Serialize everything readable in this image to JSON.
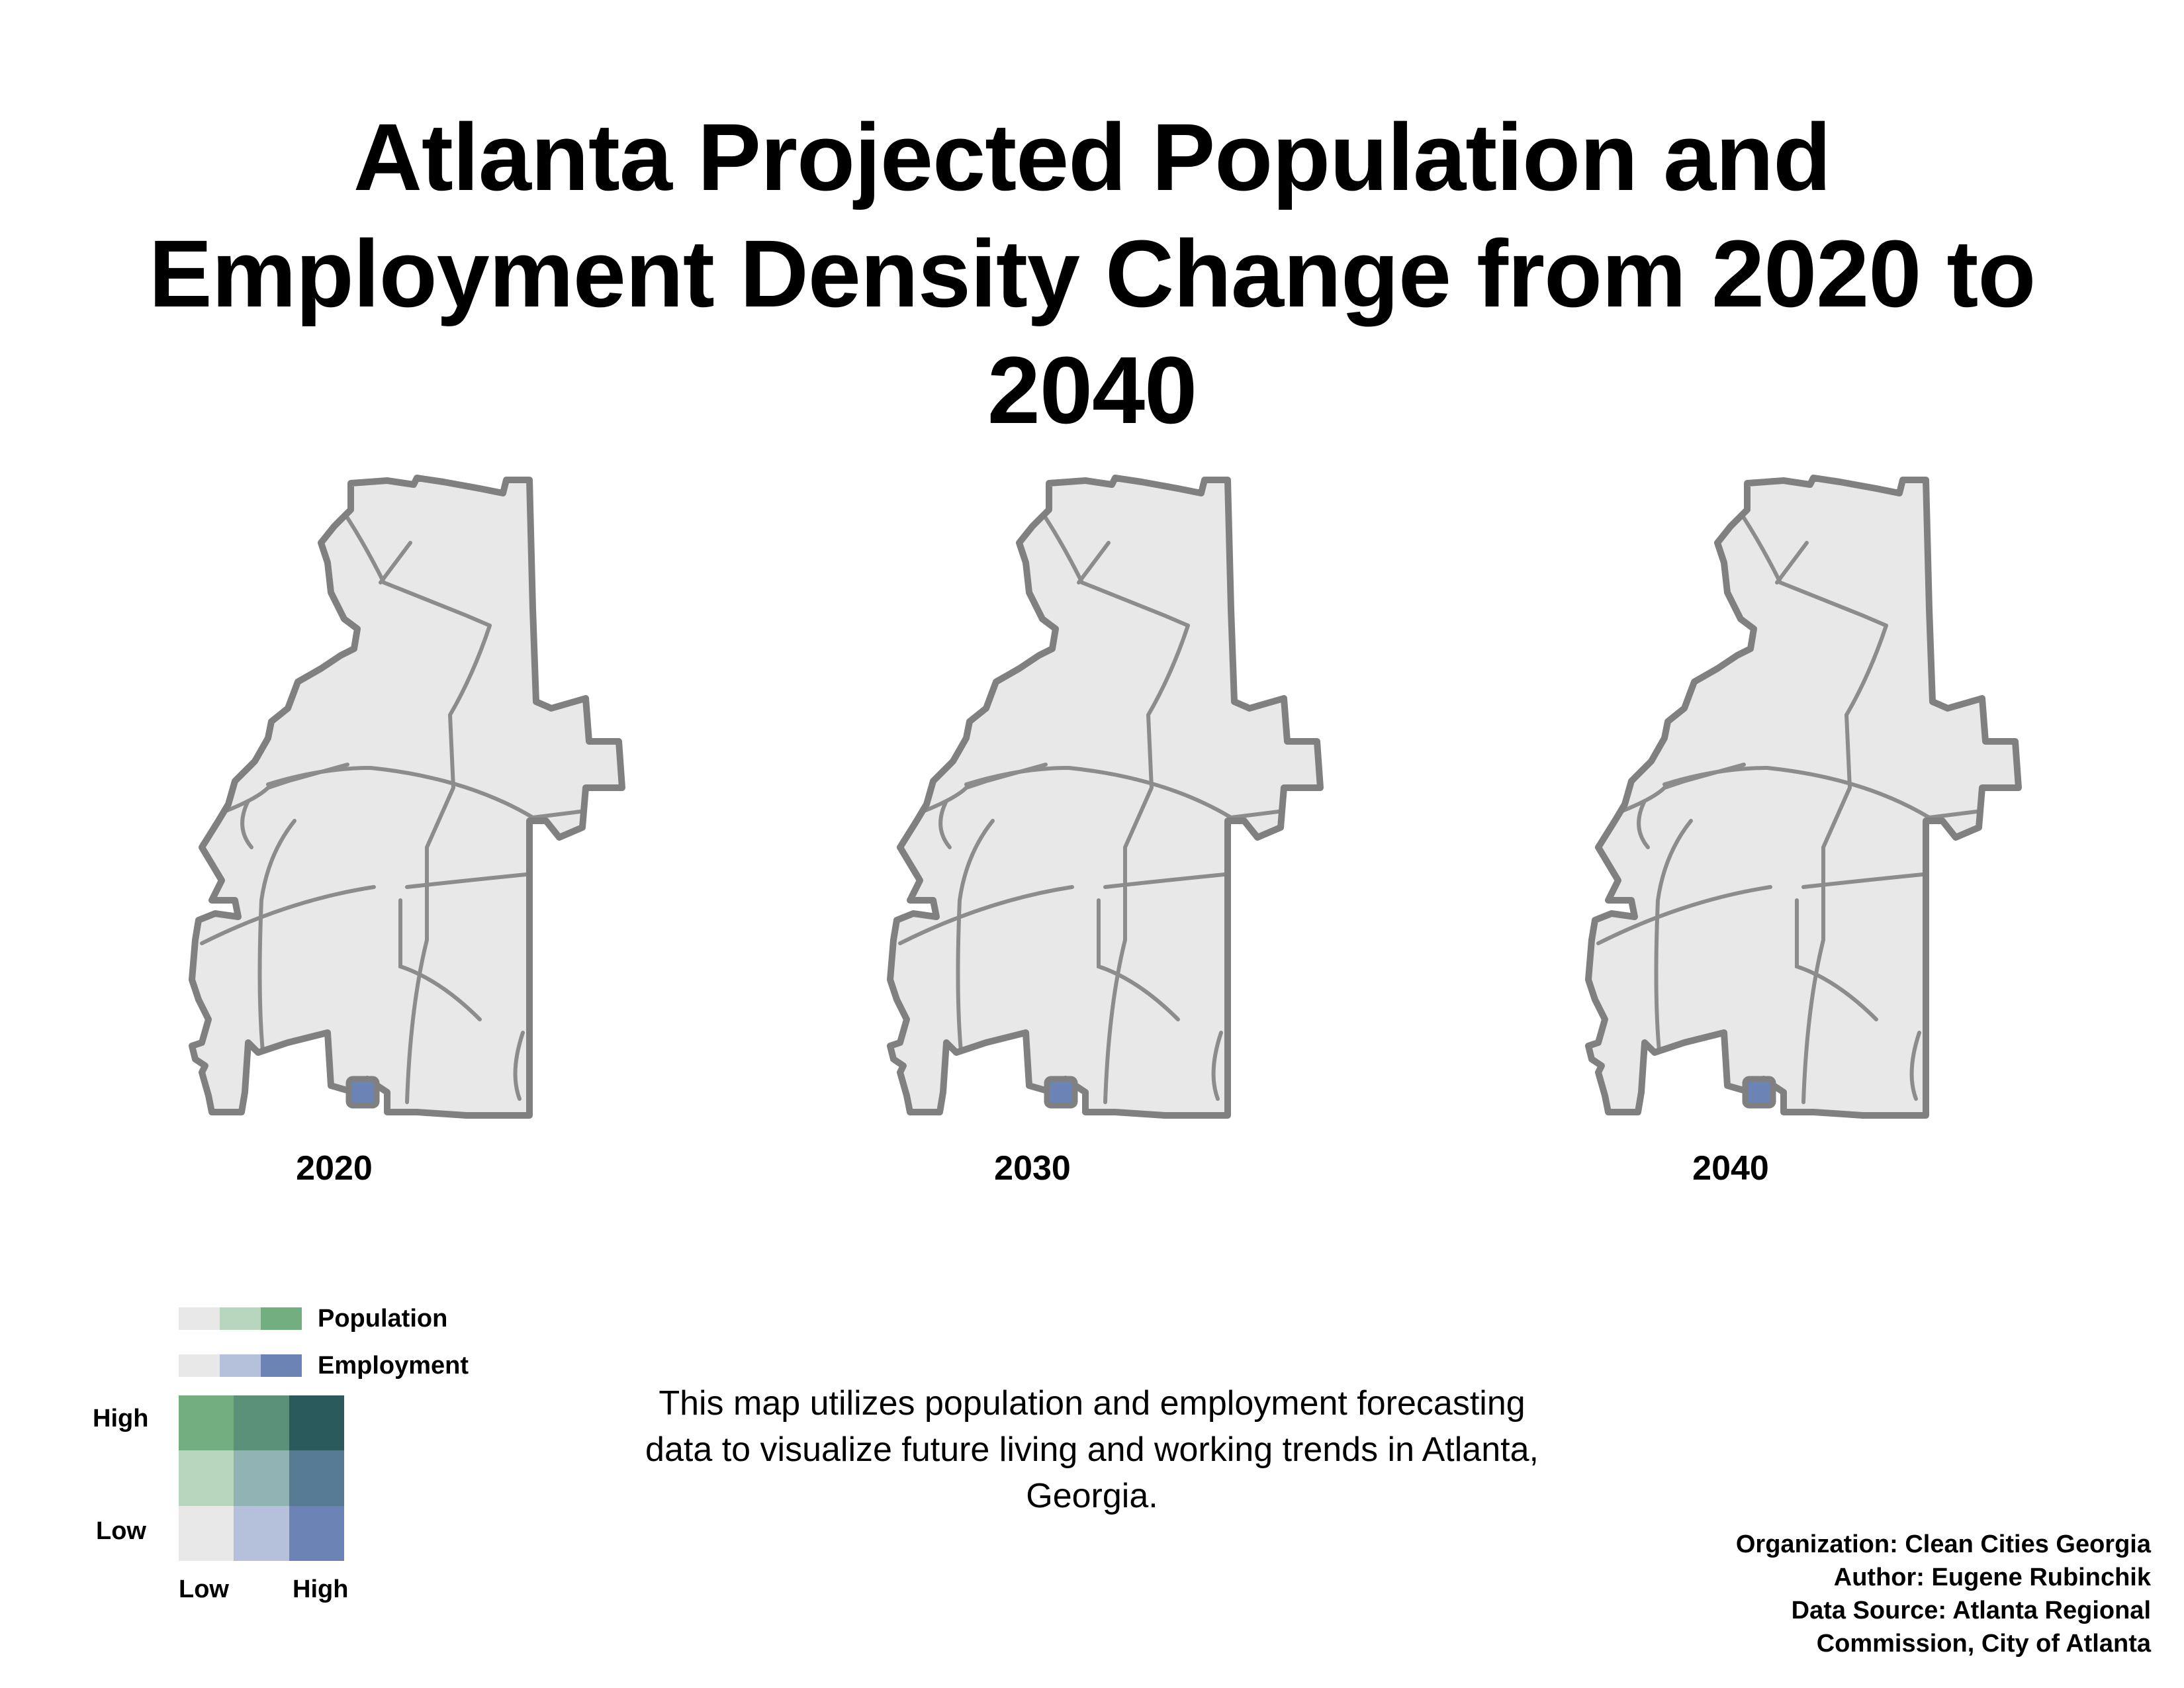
{
  "title_lines": [
    "Atlanta Projected Population and",
    "Employment Density Change from 2020 to",
    "2040"
  ],
  "maps": [
    {
      "year": "2020",
      "variant": 0
    },
    {
      "year": "2030",
      "variant": 1
    },
    {
      "year": "2040",
      "variant": 2
    }
  ],
  "legend": {
    "population_label": "Population",
    "employment_label": "Employment",
    "population_colors": [
      "#e8e8e8",
      "#b8d6be",
      "#73ae80"
    ],
    "employment_colors": [
      "#e8e8e8",
      "#b5c0da",
      "#6c83b5"
    ],
    "bivariate_grid": [
      [
        "#73ae80",
        "#5a9178",
        "#2a5a5b"
      ],
      [
        "#b8d6be",
        "#90b2b3",
        "#567994"
      ],
      [
        "#e8e8e8",
        "#b5c0da",
        "#6c83b5"
      ]
    ],
    "y_high": "High",
    "y_low": "Low",
    "x_low": "Low",
    "x_high": "High"
  },
  "description_lines": [
    "This map utilizes population and employment forecasting",
    "data to visualize future living and working trends in Atlanta,",
    "Georgia."
  ],
  "credits": [
    "Organization: Clean Cities Georgia",
    "Author: Eugene Rubinchik",
    "Data Source: Atlanta Regional",
    "Commission, City of Atlanta"
  ],
  "colors": {
    "boundary": "#808080",
    "roads": "#8c8c8c"
  }
}
